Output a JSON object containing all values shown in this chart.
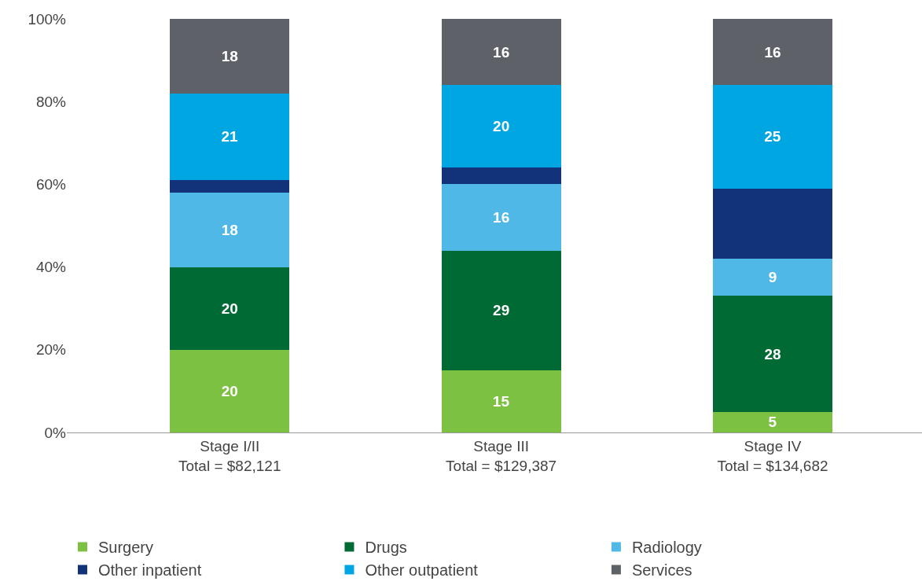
{
  "chart_data": {
    "type": "bar",
    "stacked": true,
    "categories": [
      "Stage I/II\nTotal = $82,121",
      "Stage III\nTotal = $129,387",
      "Stage IV\nTotal = $134,682"
    ],
    "series": [
      {
        "name": "Surgery",
        "color": "#7dc142",
        "values": [
          20,
          15,
          5
        ],
        "value_labels": [
          "20",
          "15",
          "5"
        ]
      },
      {
        "name": "Drugs",
        "color": "#006a35",
        "values": [
          20,
          29,
          28
        ],
        "value_labels": [
          "20",
          "29",
          "28"
        ]
      },
      {
        "name": "Radiology",
        "color": "#4fb8e6",
        "values": [
          18,
          16,
          9
        ],
        "value_labels": [
          "18",
          "16",
          "9"
        ]
      },
      {
        "name": "Other inpatient",
        "color": "#12327a",
        "values": [
          3,
          4,
          17
        ],
        "value_labels": [
          null,
          null,
          null
        ]
      },
      {
        "name": "Other outpatient",
        "color": "#00a6e2",
        "values": [
          21,
          20,
          25
        ],
        "value_labels": [
          "21",
          "20",
          "25"
        ]
      },
      {
        "name": "Services",
        "color": "#5f6168",
        "values": [
          18,
          16,
          16
        ],
        "value_labels": [
          "18",
          "16",
          "16"
        ]
      }
    ],
    "ylim": [
      0,
      100
    ],
    "yticks": [
      {
        "value": 0,
        "label": "0%"
      },
      {
        "value": 20,
        "label": "20%"
      },
      {
        "value": 40,
        "label": "40%"
      },
      {
        "value": 60,
        "label": "60%"
      },
      {
        "value": 80,
        "label": "80%"
      },
      {
        "value": 100,
        "label": "100%"
      }
    ],
    "grid": false,
    "legend": "bottom"
  }
}
